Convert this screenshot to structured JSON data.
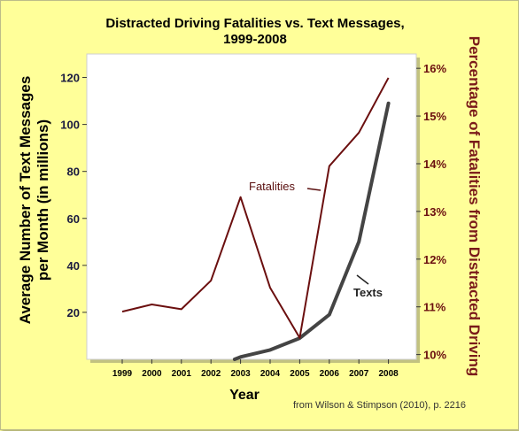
{
  "chart_data": {
    "type": "line",
    "title": "Distracted Driving Fatalities vs. Text Messages,",
    "subtitle": "1999-2008",
    "xlabel": "Year",
    "ylabel_left_line1": "Average Number of Text Messages",
    "ylabel_left_line2": "per Month (in millions)",
    "ylabel_right": "Percentage of Fatalities from Distracted Driving",
    "x": [
      "1999",
      "2000",
      "2001",
      "2002",
      "2003",
      "2004",
      "2005",
      "2006",
      "2007",
      "2008"
    ],
    "y_left_ticks": [
      "20",
      "40",
      "60",
      "80",
      "100",
      "120"
    ],
    "y_right_ticks": [
      "10%",
      "11%",
      "12%",
      "13%",
      "14%",
      "15%",
      "16%"
    ],
    "ylim_left": [
      0,
      130
    ],
    "ylim_right": [
      9.9,
      16.3
    ],
    "series": [
      {
        "name": "Fatalities",
        "axis": "right",
        "color": "#6b0f0f",
        "values": [
          10.9,
          11.05,
          10.95,
          11.55,
          13.3,
          11.4,
          10.35,
          13.95,
          14.65,
          15.8
        ]
      },
      {
        "name": "Texts",
        "axis": "left",
        "color": "#444444",
        "values": [
          null,
          null,
          null,
          null,
          1,
          4,
          9,
          19,
          50,
          109
        ]
      }
    ],
    "texts_start": {
      "x": "2002.8",
      "y": 0
    },
    "annotations": [
      "Fatalities",
      "Texts"
    ],
    "source": "from Wilson & Stimpson (2010), p. 2216",
    "grid": false
  }
}
